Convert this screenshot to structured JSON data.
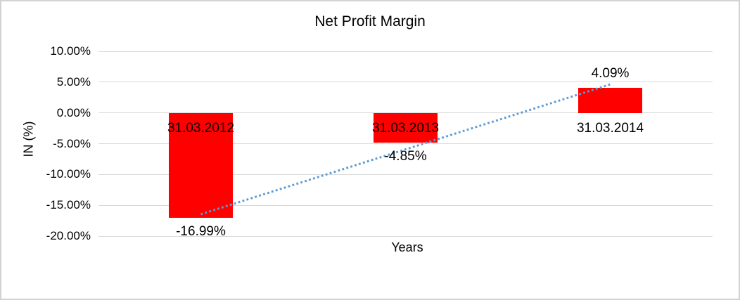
{
  "window": {
    "background": "#ffffff",
    "frame_border_color": "#d3d3d3"
  },
  "chart_data": {
    "type": "bar",
    "title": "Net Profit Margin",
    "xlabel": "Years",
    "ylabel": "IN (%)",
    "categories": [
      "31.03.2012",
      "31.03.2013",
      "31.03.2014"
    ],
    "series": [
      {
        "name": "Net Profit Margin",
        "values": [
          -16.99,
          -4.85,
          4.09
        ]
      }
    ],
    "data_labels": [
      "-16.99%",
      "-4.85%",
      "4.09%"
    ],
    "y_ticks": [
      {
        "value": 10,
        "label": "10.00%"
      },
      {
        "value": 5,
        "label": "5.00%"
      },
      {
        "value": 0,
        "label": "0.00%"
      },
      {
        "value": -5,
        "label": "-5.00%"
      },
      {
        "value": -10,
        "label": "-10.00%"
      },
      {
        "value": -15,
        "label": "-15.00%"
      },
      {
        "value": -20,
        "label": "-20.00%"
      }
    ],
    "ylim": [
      -20,
      10
    ],
    "grid": true,
    "legend": "none",
    "bar_color": "#ff0000",
    "gridline_color": "#d9d9d9",
    "text_color": "#000000",
    "trendline": {
      "type": "linear",
      "style": "dotted",
      "color": "#5b9bd5",
      "start_value": -16.46,
      "end_value": 4.62
    }
  }
}
